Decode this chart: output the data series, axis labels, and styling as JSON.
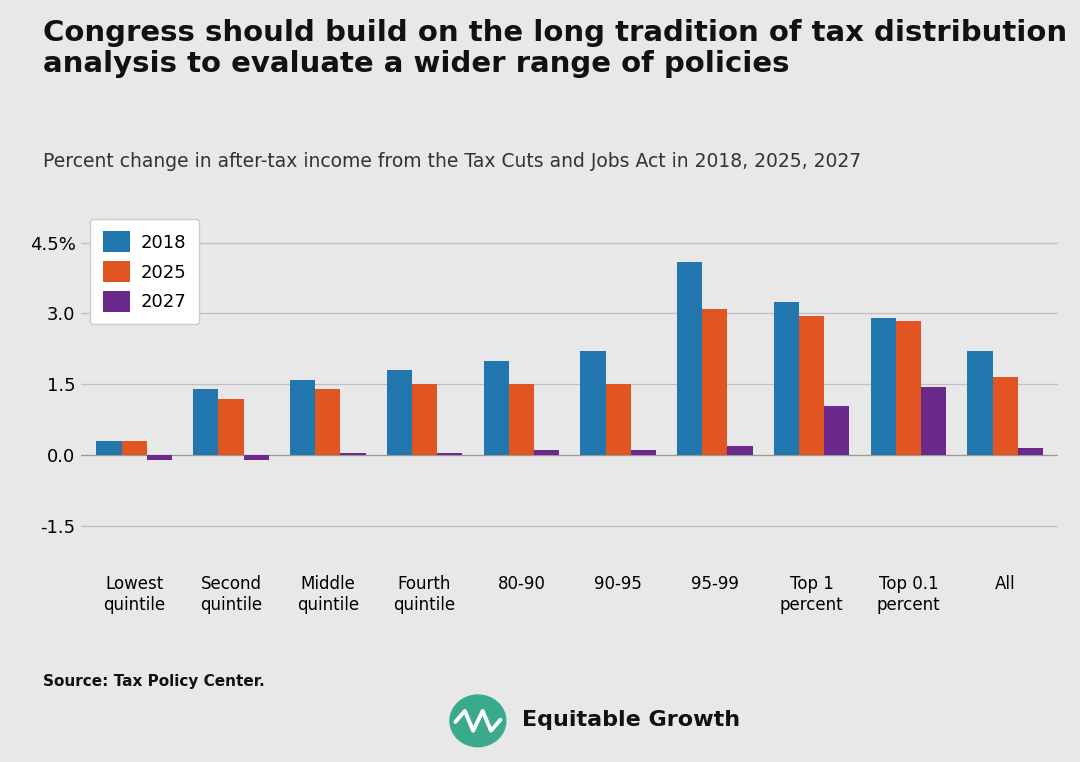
{
  "title_line1": "Congress should build on the long tradition of tax distribution",
  "title_line2": "analysis to evaluate a wider range of policies",
  "subtitle": "Percent change in after-tax income from the Tax Cuts and Jobs Act in 2018, 2025, 2027",
  "source": "Source: Tax Policy Center.",
  "categories": [
    "Lowest\nquintile",
    "Second\nquintile",
    "Middle\nquintile",
    "Fourth\nquintile",
    "80-90",
    "90-95",
    "95-99",
    "Top 1\npercent",
    "Top 0.1\npercent",
    "All"
  ],
  "data_2018": [
    0.3,
    1.4,
    1.6,
    1.8,
    2.0,
    2.2,
    4.1,
    3.25,
    2.9,
    2.2
  ],
  "data_2025": [
    0.3,
    1.2,
    1.4,
    1.5,
    1.5,
    1.5,
    3.1,
    2.95,
    2.85,
    1.65
  ],
  "data_2027": [
    -0.1,
    -0.1,
    0.05,
    0.05,
    0.1,
    0.1,
    0.2,
    1.05,
    1.45,
    0.15
  ],
  "color_2018": "#2176ae",
  "color_2025": "#e05522",
  "color_2027": "#6b2a8b",
  "background_color": "#e8e8e8",
  "yticks": [
    -1.5,
    0.0,
    1.5,
    3.0,
    4.5
  ],
  "ylim": [
    -2.3,
    5.2
  ],
  "bar_width": 0.26,
  "title_fontsize": 21,
  "subtitle_fontsize": 13.5,
  "axis_fontsize": 12,
  "tick_fontsize": 13,
  "source_fontsize": 11,
  "legend_fontsize": 13
}
